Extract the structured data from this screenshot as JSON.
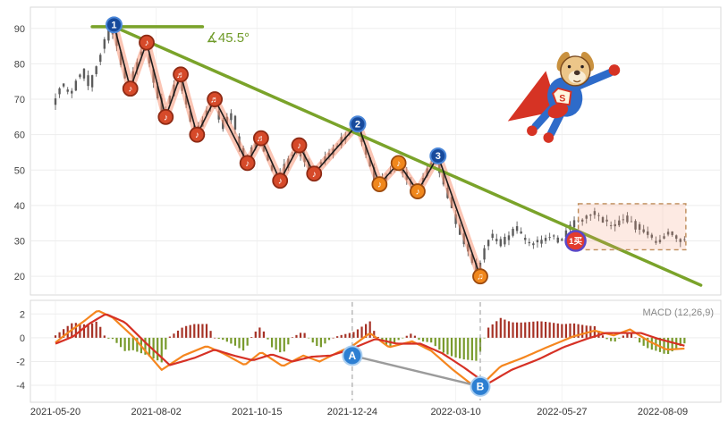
{
  "chart_data": [
    {
      "type": "candlestick",
      "panel": "price",
      "x_ticks": [
        "2021-05-20",
        "2021-08-02",
        "2021-10-15",
        "2021-12-24",
        "2022-03-10",
        "2022-05-27",
        "2022-08-09"
      ],
      "y_ticks": [
        90,
        80,
        70,
        60,
        50,
        40,
        30,
        20
      ],
      "ylim": [
        15.5,
        95.5
      ],
      "price_keypoints": [
        [
          "2021-05-20",
          69
        ],
        [
          "2021-05-26",
          74
        ],
        [
          "2021-06-02",
          71
        ],
        [
          "2021-06-10",
          78
        ],
        [
          "2021-06-16",
          74
        ],
        [
          "2021-06-24",
          83
        ],
        [
          "2021-07-02",
          91
        ],
        [
          "2021-07-14",
          73
        ],
        [
          "2021-07-26",
          86
        ],
        [
          "2021-08-09",
          65
        ],
        [
          "2021-08-20",
          77
        ],
        [
          "2021-09-01",
          60
        ],
        [
          "2021-09-14",
          70
        ],
        [
          "2021-09-22",
          62
        ],
        [
          "2021-09-28",
          66
        ],
        [
          "2021-10-08",
          52
        ],
        [
          "2021-10-18",
          59
        ],
        [
          "2021-11-01",
          47
        ],
        [
          "2021-11-15",
          57
        ],
        [
          "2021-11-26",
          49
        ],
        [
          "2021-12-10",
          55
        ],
        [
          "2021-12-28",
          63
        ],
        [
          "2022-01-13",
          46
        ],
        [
          "2022-01-27",
          52
        ],
        [
          "2022-02-10",
          44
        ],
        [
          "2022-02-25",
          54
        ],
        [
          "2022-03-10",
          38
        ],
        [
          "2022-03-28",
          20
        ],
        [
          "2022-04-06",
          32
        ],
        [
          "2022-04-14",
          29
        ],
        [
          "2022-04-25",
          34
        ],
        [
          "2022-05-06",
          28.5
        ],
        [
          "2022-05-18",
          31
        ],
        [
          "2022-05-27",
          30
        ],
        [
          "2022-06-08",
          35.5
        ],
        [
          "2022-06-20",
          38
        ],
        [
          "2022-07-04",
          34
        ],
        [
          "2022-07-16",
          36.5
        ],
        [
          "2022-07-28",
          32
        ],
        [
          "2022-08-08",
          30
        ],
        [
          "2022-08-16",
          32.5
        ],
        [
          "2022-08-26",
          30
        ]
      ],
      "pivots": [
        {
          "date": "2021-07-02",
          "price": 91,
          "marker": "num",
          "label": "1"
        },
        {
          "date": "2021-07-14",
          "price": 73,
          "marker": "note-red",
          "label": "♪"
        },
        {
          "date": "2021-07-26",
          "price": 86,
          "marker": "note-red",
          "label": "♪"
        },
        {
          "date": "2021-08-09",
          "price": 65,
          "marker": "note-red",
          "label": "♪"
        },
        {
          "date": "2021-08-20",
          "price": 77,
          "marker": "note-red",
          "label": "♬"
        },
        {
          "date": "2021-09-01",
          "price": 60,
          "marker": "note-red",
          "label": "♪"
        },
        {
          "date": "2021-09-14",
          "price": 70,
          "marker": "note-red",
          "label": "♬"
        },
        {
          "date": "2021-10-08",
          "price": 52,
          "marker": "note-red",
          "label": "♪"
        },
        {
          "date": "2021-10-18",
          "price": 59,
          "marker": "note-red",
          "label": "♬"
        },
        {
          "date": "2021-11-01",
          "price": 47,
          "marker": "note-red",
          "label": "♪"
        },
        {
          "date": "2021-11-15",
          "price": 57,
          "marker": "note-red",
          "label": "♪"
        },
        {
          "date": "2021-11-26",
          "price": 49,
          "marker": "note-red",
          "label": "♪"
        },
        {
          "date": "2021-12-28",
          "price": 63,
          "marker": "num",
          "label": "2"
        },
        {
          "date": "2022-01-13",
          "price": 46,
          "marker": "note-orange",
          "label": "♪"
        },
        {
          "date": "2022-01-27",
          "price": 52,
          "marker": "note-orange",
          "label": "♪"
        },
        {
          "date": "2022-02-10",
          "price": 44,
          "marker": "note-orange",
          "label": "♪"
        },
        {
          "date": "2022-02-25",
          "price": 54,
          "marker": "num",
          "label": "3"
        },
        {
          "date": "2022-03-28",
          "price": 20,
          "marker": "note-orange",
          "label": "♫"
        }
      ],
      "trendline": {
        "from_date": "2021-07-02",
        "from_price": 90.5,
        "to_date": "2022-09-06",
        "to_price": 17.5
      },
      "angle_annotation": {
        "label": "∡45.5°",
        "value_deg": 45.5,
        "line_from": "2021-06-16",
        "line_to": "2021-09-05",
        "price": 90.5
      },
      "buy_badge": {
        "label": "1买",
        "date": "2022-06-06",
        "price": 30
      },
      "highlight_box": {
        "from_date": "2022-06-08",
        "to_date": "2022-08-26",
        "price_low": 27.5,
        "price_high": 40.5
      }
    },
    {
      "type": "macd",
      "panel": "indicator",
      "label": "MACD (12,26,9)",
      "y_ticks": [
        2,
        0,
        -2,
        -4
      ],
      "ylim": [
        -5.2,
        3.0
      ],
      "dif_keypoints": [
        [
          "2021-05-20",
          -0.4
        ],
        [
          "2021-05-30",
          0.5
        ],
        [
          "2021-06-10",
          1.4
        ],
        [
          "2021-06-20",
          2.3
        ],
        [
          "2021-07-01",
          1.7
        ],
        [
          "2021-07-16",
          0.1
        ],
        [
          "2021-08-06",
          -2.7
        ],
        [
          "2021-08-22",
          -1.5
        ],
        [
          "2021-09-08",
          -0.7
        ],
        [
          "2021-09-20",
          -1.3
        ],
        [
          "2021-10-06",
          -2.3
        ],
        [
          "2021-10-18",
          -1.2
        ],
        [
          "2021-11-03",
          -2.4
        ],
        [
          "2021-11-18",
          -1.5
        ],
        [
          "2021-11-30",
          -2.0
        ],
        [
          "2021-12-14",
          -1.2
        ],
        [
          "2021-12-24",
          -0.7
        ],
        [
          "2022-01-06",
          0.4
        ],
        [
          "2022-01-20",
          -0.8
        ],
        [
          "2022-02-06",
          -0.3
        ],
        [
          "2022-02-20",
          -1.1
        ],
        [
          "2022-03-08",
          -2.7
        ],
        [
          "2022-03-26",
          -4.3
        ],
        [
          "2022-04-12",
          -2.4
        ],
        [
          "2022-04-28",
          -1.7
        ],
        [
          "2022-05-16",
          -0.8
        ],
        [
          "2022-06-04",
          0.1
        ],
        [
          "2022-06-20",
          0.6
        ],
        [
          "2022-07-04",
          0.2
        ],
        [
          "2022-07-16",
          0.7
        ],
        [
          "2022-07-30",
          -0.3
        ],
        [
          "2022-08-12",
          -1.0
        ],
        [
          "2022-08-26",
          -0.9
        ]
      ],
      "dea_keypoints": [
        [
          "2021-05-20",
          -0.5
        ],
        [
          "2021-06-02",
          0.1
        ],
        [
          "2021-06-14",
          1.2
        ],
        [
          "2021-06-26",
          2.0
        ],
        [
          "2021-07-10",
          1.3
        ],
        [
          "2021-07-26",
          -0.5
        ],
        [
          "2021-08-12",
          -2.3
        ],
        [
          "2021-08-30",
          -1.7
        ],
        [
          "2021-09-14",
          -1.0
        ],
        [
          "2021-09-28",
          -1.5
        ],
        [
          "2021-10-12",
          -1.9
        ],
        [
          "2021-10-26",
          -1.4
        ],
        [
          "2021-11-10",
          -2.0
        ],
        [
          "2021-11-24",
          -1.6
        ],
        [
          "2021-12-08",
          -1.5
        ],
        [
          "2021-12-22",
          -1.0
        ],
        [
          "2022-01-10",
          -0.1
        ],
        [
          "2022-01-26",
          -0.5
        ],
        [
          "2022-02-12",
          -0.5
        ],
        [
          "2022-02-28",
          -1.3
        ],
        [
          "2022-03-16",
          -2.5
        ],
        [
          "2022-04-02",
          -3.9
        ],
        [
          "2022-04-20",
          -2.7
        ],
        [
          "2022-05-10",
          -1.8
        ],
        [
          "2022-05-28",
          -0.8
        ],
        [
          "2022-06-14",
          -0.1
        ],
        [
          "2022-06-28",
          0.4
        ],
        [
          "2022-07-12",
          0.4
        ],
        [
          "2022-07-24",
          0.4
        ],
        [
          "2022-08-06",
          -0.1
        ],
        [
          "2022-08-26",
          -0.7
        ]
      ],
      "markers": [
        {
          "label": "A",
          "date": "2021-12-24",
          "value": -1.5
        },
        {
          "label": "B",
          "date": "2022-03-28",
          "value": -4.1
        }
      ],
      "vlines": [
        "2021-12-24",
        "2022-03-28"
      ]
    }
  ],
  "mascot": {
    "shield_letter": "S"
  },
  "colors": {
    "trendline_green": "#7aa32a",
    "angle_text_green": "#6f9b29",
    "candle_gray": "#5c5c5c",
    "zigzag_black": "#1c1c1c",
    "zigzag_glow": "rgba(247,139,105,0.5)",
    "note_red_fill": "#d64a2a",
    "note_red_stroke": "#8e2a14",
    "note_orange_fill": "#f0871c",
    "note_orange_stroke": "#9c4a0e",
    "num_fill": "#174a9c",
    "num_stroke": "#4a86d8",
    "buy_fill": "#e23b2e",
    "buy_stroke": "#5a48c8",
    "dif_orange": "#f5861f",
    "dea_red": "#d63125",
    "hist_pos": "#a63226",
    "hist_neg": "#789a2c",
    "ab_fill": "#2d7fd2",
    "ab_stroke": "#a8cdf0",
    "connector_gray": "#9b9b9b",
    "box_fill": "rgba(243,150,115,0.2)",
    "box_stroke": "#bd8a57",
    "grid": "#ededed",
    "panel_border": "#d9d9d9",
    "tick_text": "#444444",
    "xtick_text": "#333333",
    "macd_label_text": "#888888",
    "vline_gray": "#999999"
  }
}
